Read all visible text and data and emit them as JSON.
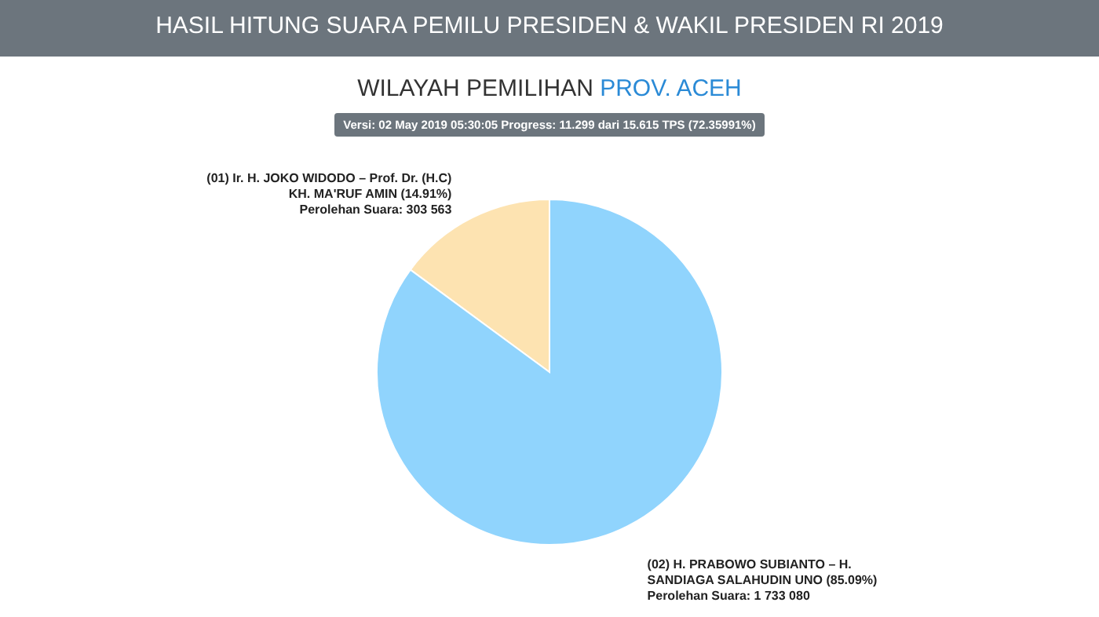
{
  "chart_data": {
    "type": "pie",
    "title": "HASIL HITUNG SUARA PEMILU PRESIDEN & WAKIL PRESIDEN RI 2019",
    "subtitle": "WILAYAH PEMILIHAN PROV. ACEH",
    "annotations": [
      "Versi: 02 May 2019 05:30:05 Progress: 11.299 dari 15.615 TPS (72.35991%)"
    ],
    "categories": [
      "(01) Ir. H. JOKO WIDODO – Prof. Dr. (H.C)\nKH. MA'RUF AMIN (14.91%)",
      "(02) H. PRABOWO SUBIANTO – H.\nSANDIAGA SALAHUDIN UNO (85.09%)"
    ],
    "values": [
      303563,
      1733080
    ],
    "value_labels": [
      "Perolehan Suara: 303 563",
      "Perolehan Suara: 1 733 080"
    ],
    "colors": [
      "#fde3b1",
      "#90d4fd"
    ]
  }
}
